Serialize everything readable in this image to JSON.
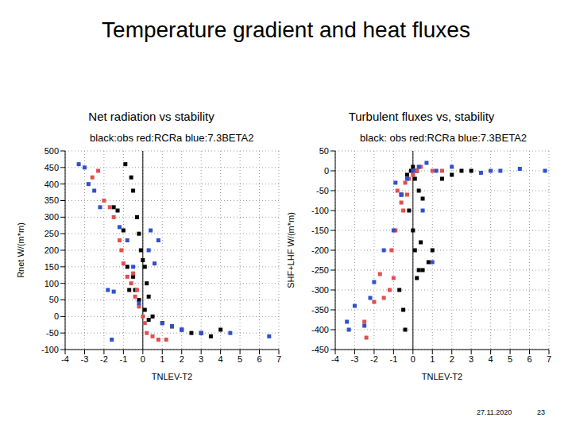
{
  "title": "Temperature gradient and heat fluxes",
  "footer": {
    "date": "27.11.2020",
    "page": "23"
  },
  "chart_data": [
    {
      "type": "scatter",
      "subtitle": "Net radiation vs stability",
      "title": "black:obs red:RCRa blue:7.3BETA2",
      "x_label": "TNLEV-T2",
      "y_label": "Rnet W/(m*m)",
      "xlim": [
        -4,
        7
      ],
      "xticks": [
        -4,
        -3,
        -2,
        -1,
        0,
        1,
        2,
        3,
        4,
        5,
        6,
        7
      ],
      "ylim": [
        -100,
        500
      ],
      "yticks": [
        -100,
        -50,
        0,
        50,
        100,
        150,
        200,
        250,
        300,
        350,
        400,
        450,
        500
      ],
      "grid": true,
      "vline": 0,
      "marker": "square",
      "series": [
        {
          "name": "obs",
          "color": "#000000",
          "x": [
            -0.9,
            -0.6,
            -0.5,
            -0.3,
            -0.2,
            -0.1,
            0,
            0.1,
            0.2,
            0.3,
            -0.5,
            -0.4,
            -1.3,
            -1.0,
            -0.8,
            0.5,
            1.0,
            1.5,
            2.0,
            2.5,
            3.0,
            3.5,
            4.0,
            0.3,
            0.1,
            -0.2,
            -0.7,
            -1.5
          ],
          "values": [
            460,
            420,
            380,
            300,
            250,
            200,
            170,
            150,
            100,
            60,
            120,
            80,
            320,
            260,
            150,
            0,
            -20,
            -30,
            -40,
            -50,
            -50,
            -60,
            -40,
            -10,
            20,
            50,
            80,
            330
          ]
        },
        {
          "name": "RCRa",
          "color": "#e05050",
          "x": [
            -2.3,
            -2.0,
            -1.7,
            -1.5,
            -1.2,
            -1.0,
            -0.8,
            -0.6,
            -0.4,
            -0.2,
            0,
            0.2,
            0.5,
            0.8,
            1.2,
            -1.1,
            -0.5,
            0.1,
            -0.3,
            -2.6
          ],
          "values": [
            440,
            350,
            330,
            300,
            230,
            160,
            120,
            100,
            60,
            30,
            0,
            -50,
            -60,
            -70,
            -70,
            200,
            130,
            -20,
            80,
            420
          ]
        },
        {
          "name": "7.3BETA2",
          "color": "#3050d0",
          "x": [
            -3.3,
            -3.0,
            -2.8,
            -2.5,
            -2.2,
            -1.8,
            -1.5,
            -1.2,
            -0.8,
            -0.5,
            -0.2,
            0.3,
            0.6,
            1.0,
            1.5,
            2.0,
            3.0,
            4.5,
            6.5,
            -1.6,
            0.4,
            0.8
          ],
          "values": [
            460,
            450,
            400,
            380,
            330,
            80,
            75,
            270,
            230,
            150,
            40,
            200,
            160,
            -20,
            -30,
            -40,
            -50,
            -50,
            -60,
            -70,
            260,
            230
          ]
        }
      ]
    },
    {
      "type": "scatter",
      "subtitle": "Turbulent fluxes vs, stability",
      "title": "black: obs red:RCRa blue:7.3BETA2",
      "x_label": "TNLEV-T2",
      "y_label": "SHF+LHF W/(m*m)",
      "xlim": [
        -4,
        7
      ],
      "xticks": [
        -4,
        -3,
        -2,
        -1,
        0,
        1,
        2,
        3,
        4,
        5,
        6,
        7
      ],
      "ylim": [
        -450,
        50
      ],
      "yticks": [
        -450,
        -400,
        -350,
        -300,
        -250,
        -200,
        -150,
        -100,
        -50,
        0,
        50
      ],
      "grid": true,
      "vline": 0,
      "marker": "square",
      "series": [
        {
          "name": "obs",
          "color": "#000000",
          "x": [
            -0.3,
            -0.1,
            0,
            0.1,
            0.2,
            0.3,
            0.5,
            -0.2,
            0,
            0.1,
            0.3,
            0.5,
            0.8,
            1.0,
            1.5,
            2.0,
            2.5,
            3.0,
            -0.5,
            -0.7,
            -0.4,
            0.2,
            0.4,
            -0.6
          ],
          "values": [
            -10,
            0,
            10,
            -20,
            0,
            -50,
            -70,
            -100,
            -150,
            -200,
            -250,
            -250,
            -230,
            -200,
            -20,
            -10,
            0,
            0,
            -350,
            -300,
            -400,
            -270,
            -180,
            -60
          ]
        },
        {
          "name": "RCRa",
          "color": "#e05050",
          "x": [
            -1.5,
            -1.2,
            -1.0,
            -0.8,
            -0.6,
            -0.4,
            -0.2,
            0,
            0.2,
            0.4,
            -2.4,
            -2.0,
            -1.7,
            -1.1,
            -0.9,
            -0.5,
            1.0,
            1.5,
            -0.3,
            -2.5
          ],
          "values": [
            -320,
            -300,
            -270,
            -50,
            -80,
            -30,
            -20,
            -10,
            0,
            10,
            -420,
            -330,
            -260,
            -200,
            -150,
            -100,
            0,
            0,
            -60,
            -380
          ]
        },
        {
          "name": "7.3BETA2",
          "color": "#3050d0",
          "x": [
            -3.4,
            -3.3,
            -3.0,
            -2.5,
            -2.2,
            -2.0,
            -1.5,
            -1.0,
            -0.6,
            -0.3,
            0,
            0.3,
            0.7,
            1.2,
            2.0,
            3.5,
            4.0,
            4.5,
            5.5,
            6.8,
            -0.9,
            0.5,
            1.0
          ],
          "values": [
            -380,
            -400,
            -340,
            -390,
            -320,
            -280,
            -200,
            -150,
            -60,
            -20,
            0,
            10,
            20,
            0,
            10,
            -5,
            0,
            0,
            5,
            0,
            -30,
            -100,
            -230
          ]
        }
      ]
    }
  ]
}
